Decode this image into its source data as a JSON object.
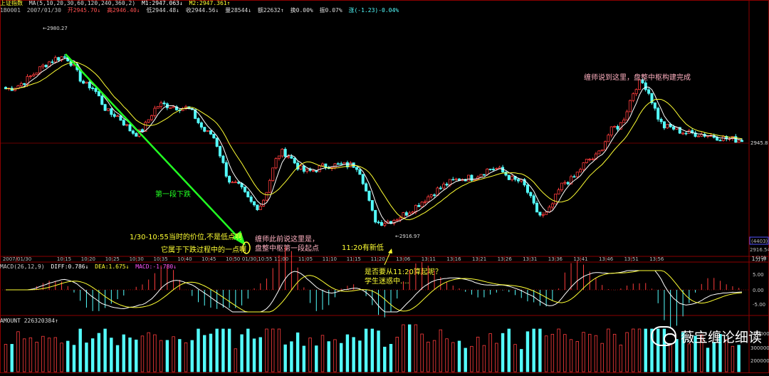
{
  "header": {
    "index_name": "上证指数",
    "ma_line": "MA(5,10,20,30,60,120,240,360,2)",
    "m1": "M1:2947.063↓",
    "m2": "M2:2947.361↑",
    "info_code": "1B0001",
    "info_date": "2007/01/30",
    "open": "开2945.70↓",
    "high": "高2946.40↓",
    "low": "低2944.48↓",
    "close": "收2944.56↓",
    "volume": "量28544↓",
    "amount": "额22632↑",
    "turnover": "换0.00%",
    "amplitude": "振0.07%",
    "change": "涨(-1.23)-0.04%"
  },
  "macd_header": {
    "label": "MACD(26,12,9)",
    "diff": "DIFF:0.786↓",
    "dea": "DEA:1.675↓",
    "macd": "MACD:-1.780↓"
  },
  "amount_header": {
    "label": "AMOUNT 226320384↑"
  },
  "price_axis": {
    "top_label": "2980.27",
    "low_label": "2916.97",
    "right_price": "2945.8",
    "right_box": "(4403)",
    "right_bottom": "2916.54"
  },
  "macd_axis": [
    "5.00",
    "0.00",
    "-5.00"
  ],
  "amount_axis": [
    "400000",
    "300000",
    "200000"
  ],
  "time_axis": {
    "period": "1分钟",
    "labels": [
      "2007/01/30",
      "10:15",
      "10:20",
      "10:25",
      "10:30",
      "10:35",
      "10:40",
      "10:45",
      "10:50",
      "01/30,10:55",
      "11:00",
      "11:05",
      "11:10",
      "11:15",
      "11:20",
      "13:06",
      "13:11",
      "13:16",
      "13:21",
      "13:26",
      "13:31",
      "13:36",
      "13:41",
      "13:46",
      "13:51",
      "13:56"
    ]
  },
  "annotations": {
    "first_down": "第一段下跌",
    "note_1055_a": "1/30-10:55当时的价位,不是低点啊",
    "note_1055_b": "它属于下跌过程中的一点啊",
    "teacher_said_a": "缠师此前说这里是，",
    "teacher_said_b": "盘整中枢第一段起点",
    "new_low_1120": "11:20有新低",
    "question_a": "是否要从11:20算起呢？",
    "question_b": "学生迷惑中....",
    "center_done": "缠师说到这里，盘整中枢构建完成"
  },
  "watermark": "薇宝缠论细读",
  "colors": {
    "up": "#ff3c3c",
    "down": "#54ffff",
    "ma_fast": "#ffffff",
    "ma_slow": "#ffff33",
    "arrow": "#22ff22",
    "grid": "#8b0000"
  },
  "chart_data": {
    "type": "candlestick",
    "title": "上证指数",
    "x": [
      "10:15",
      "10:20",
      "10:25",
      "10:30",
      "10:35",
      "10:40",
      "10:45",
      "10:50",
      "10:55",
      "11:00",
      "11:05",
      "11:10",
      "11:15",
      "11:20",
      "13:06",
      "13:11",
      "13:16",
      "13:21",
      "13:26",
      "13:31",
      "13:36",
      "13:41",
      "13:46",
      "13:51",
      "13:56"
    ],
    "close_trace": [
      2972,
      2963,
      2954,
      2948,
      2957,
      2956,
      2948,
      2932,
      2925,
      2942,
      2936,
      2938,
      2938,
      2920,
      2934,
      2937,
      2933,
      2922,
      2933,
      2940,
      2950,
      2964,
      2950,
      2948,
      2946
    ],
    "ylim": [
      2912,
      2985
    ],
    "marked_high": 2980.27,
    "marked_low": 2916.97,
    "last_price": 2945.8,
    "macd": {
      "diff_range": [
        -5,
        5
      ],
      "ticks": [
        5,
        0,
        -5
      ]
    },
    "amount": {
      "ticks": [
        400000,
        300000,
        200000
      ]
    }
  }
}
